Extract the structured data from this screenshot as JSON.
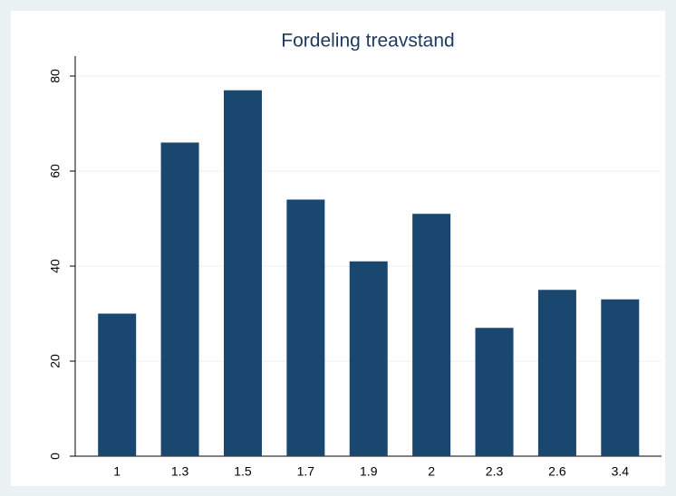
{
  "chart_data": {
    "type": "bar",
    "title": "Fordeling treavstand",
    "categories": [
      "1",
      "1.3",
      "1.5",
      "1.7",
      "1.9",
      "2",
      "2.3",
      "2.6",
      "3.4"
    ],
    "values": [
      30,
      66,
      77,
      54,
      41,
      51,
      27,
      35,
      33
    ],
    "color": "#1a476f",
    "ylim": [
      0,
      80
    ],
    "yticks": [
      0,
      20,
      40,
      60,
      80
    ],
    "grid": true
  }
}
